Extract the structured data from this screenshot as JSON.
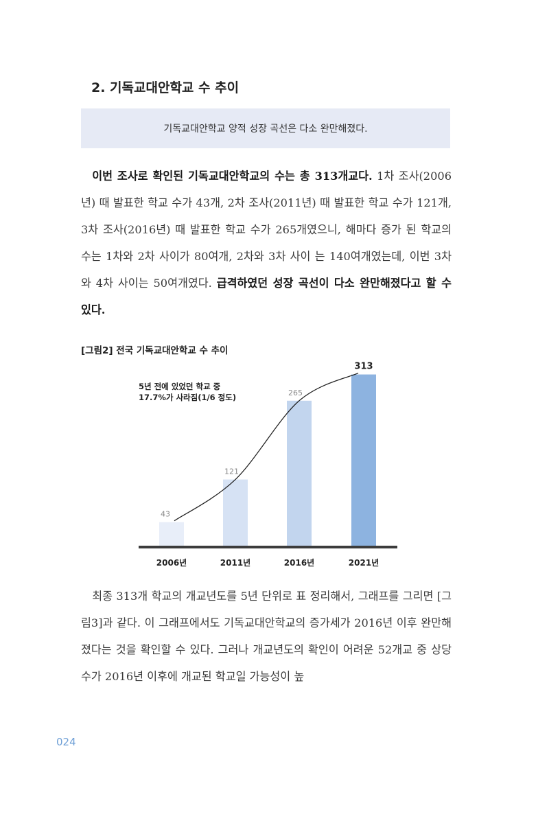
{
  "section": {
    "title": "2. 기독교대안학교 수 추이"
  },
  "summary": "기독교대안학교 양적 성장 곡선은 다소 완만해졌다.",
  "para1": {
    "bold_lead": "이번 조사로 확인된 기독교대안학교의 수는 총 313개교다.",
    "body": " 1차 조사(2006년) 때 발표한 학교 수가 43개, 2차 조사(2011년) 때 발표한 학교 수가 121개, 3차 조사(2016년) 때 발표한 학교 수가 265개였으니, 해마다 증가 된 학교의 수는 1차와 2차 사이가 80여개, 2차와 3차 사이 는 140여개였는데, 이번 3차와 4차 사이는 50여개였다. ",
    "bold_tail": "급격하였던 성장 곡선이 다소 완만해졌다고 할 수 있다."
  },
  "figure": {
    "caption": "[그림2] 전국 기독교대안학교 수 추이",
    "annotation_line1": "5년 전에 있었던 학교 중",
    "annotation_line2": "17.7%가 사라짐(1/6 정도)"
  },
  "chart_data": {
    "type": "bar",
    "categories": [
      "2006년",
      "2011년",
      "2016년",
      "2021년"
    ],
    "values": [
      43,
      121,
      265,
      313
    ],
    "value_labels": [
      "43",
      "121",
      "265",
      "313"
    ],
    "ylim": [
      0,
      330
    ],
    "grid": false,
    "legend": "none",
    "trend_line": true,
    "colors": [
      "#e8eef9",
      "#d6e2f4",
      "#c2d5ee",
      "#8db3e0"
    ]
  },
  "para2": {
    "body": "최종 313개 학교의 개교년도를 5년 단위로 표 정리해서, 그래프를 그리면 [그림3]과 같다. 이 그래프에서도 기독교대안학교의 증가세가 2016년 이후 완만해졌다는 것을 확인할 수 있다. 그러나 개교년도의 확인이 어려운 52개교 중 상당수가 2016년 이후에 개교된 학교일 가능성이 높"
  },
  "page_number": "024"
}
